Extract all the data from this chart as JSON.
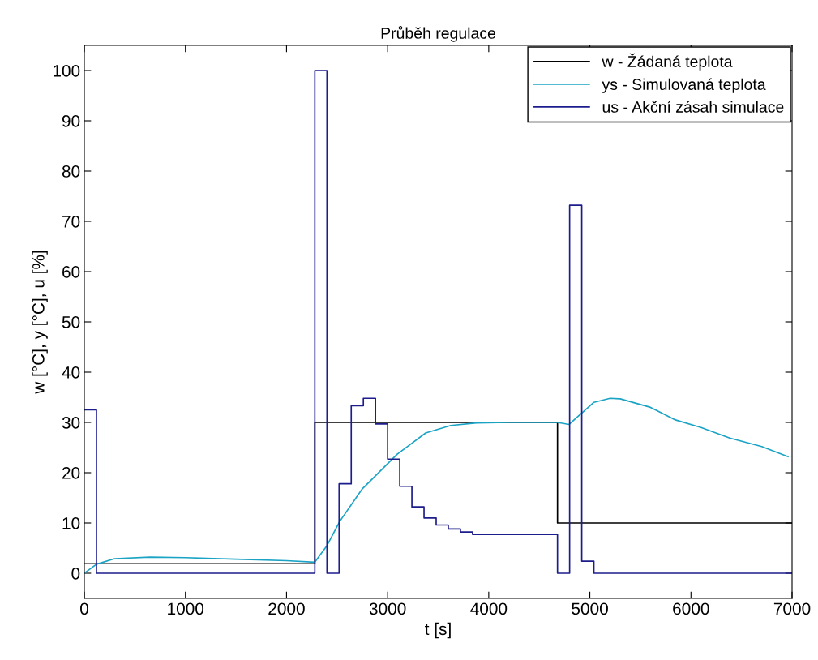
{
  "chart_data": {
    "type": "line",
    "title": "Průběh regulace",
    "xlabel": "t [s]",
    "ylabel": "w [°C], y [°C], u [%]",
    "xlim": [
      0,
      7000
    ],
    "ylim": [
      -5,
      105
    ],
    "xticks": [
      0,
      1000,
      2000,
      3000,
      4000,
      5000,
      6000,
      7000
    ],
    "yticks": [
      0,
      10,
      20,
      30,
      40,
      50,
      60,
      70,
      80,
      90,
      100
    ],
    "grid": false,
    "legend": "top right",
    "line_style": "solid",
    "marker": "none",
    "series": [
      {
        "name": "w - Žádaná teplota",
        "type": "step",
        "color": "#000000",
        "x": [
          0,
          2280,
          4680,
          7000
        ],
        "values": [
          1.9,
          30,
          10,
          10
        ]
      },
      {
        "name": "ys - Simulovaná teplota",
        "color": "#1aa3c4",
        "x": [
          0,
          120,
          300,
          650,
          1000,
          1500,
          2000,
          2280,
          2400,
          2526,
          2750,
          3095,
          3376,
          3625,
          3880,
          4200,
          4680,
          4795,
          4900,
          5040,
          5200,
          5300,
          5600,
          5846,
          6100,
          6383,
          6700,
          6960
        ],
        "values": [
          0,
          1.8,
          2.9,
          3.2,
          3.1,
          2.8,
          2.5,
          2.2,
          5.5,
          10.3,
          16.8,
          23.7,
          27.9,
          29.4,
          29.9,
          30,
          30,
          29.6,
          31.5,
          34,
          34.8,
          34.7,
          33,
          30.5,
          29,
          26.9,
          25.2,
          23.2
        ]
      },
      {
        "name": "us - Akční zásah simulace",
        "type": "step",
        "color": "#1c1c8c",
        "x": [
          0,
          120,
          2280,
          2400,
          2520,
          2640,
          2760,
          2880,
          3000,
          3120,
          3240,
          3360,
          3480,
          3600,
          3720,
          3840,
          4680,
          4800,
          4920,
          5040,
          7000
        ],
        "values": [
          32.5,
          0,
          100,
          0,
          17.8,
          33.3,
          34.8,
          29.7,
          22.7,
          17.3,
          13.2,
          11,
          9.6,
          8.8,
          8.2,
          7.7,
          0,
          73.2,
          2.4,
          0,
          0
        ]
      }
    ]
  }
}
